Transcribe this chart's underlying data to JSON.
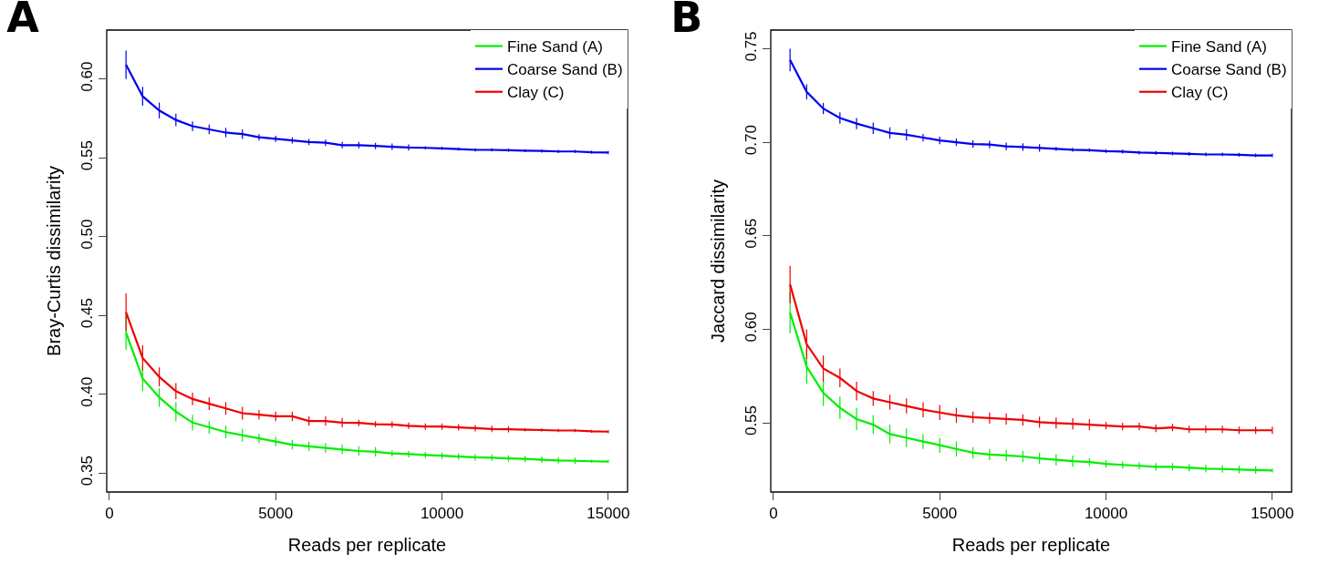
{
  "chart_data": [
    {
      "type": "line",
      "title": "A",
      "xlabel": "Reads per replicate",
      "ylabel": "Bray-Curtis dissimilarity",
      "x": [
        500,
        1000,
        1500,
        2000,
        2500,
        3000,
        3500,
        4000,
        4500,
        5000,
        5500,
        6000,
        6500,
        7000,
        7500,
        8000,
        8500,
        9000,
        9500,
        10000,
        10500,
        11000,
        11500,
        12000,
        12500,
        13000,
        13500,
        14000,
        14500,
        15000
      ],
      "series": [
        {
          "name": "Fine Sand (A)",
          "color": "#00ee00",
          "values": [
            0.439,
            0.41,
            0.398,
            0.389,
            0.382,
            0.379,
            0.376,
            0.374,
            0.372,
            0.37,
            0.368,
            0.367,
            0.366,
            0.365,
            0.364,
            0.3635,
            0.3625,
            0.362,
            0.3615,
            0.361,
            0.3605,
            0.36,
            0.3598,
            0.3593,
            0.359,
            0.3585,
            0.358,
            0.3578,
            0.3575,
            0.3573
          ],
          "errors": [
            0.011,
            0.008,
            0.006,
            0.006,
            0.005,
            0.004,
            0.004,
            0.004,
            0.003,
            0.003,
            0.003,
            0.003,
            0.003,
            0.003,
            0.003,
            0.003,
            0.002,
            0.002,
            0.002,
            0.002,
            0.002,
            0.002,
            0.002,
            0.002,
            0.002,
            0.002,
            0.002,
            0.002,
            0.001,
            0.001
          ]
        },
        {
          "name": "Coarse Sand (B)",
          "color": "#0000ee",
          "values": [
            0.609,
            0.589,
            0.58,
            0.574,
            0.57,
            0.568,
            0.566,
            0.565,
            0.563,
            0.562,
            0.561,
            0.56,
            0.5595,
            0.558,
            0.558,
            0.5575,
            0.557,
            0.5565,
            0.5563,
            0.556,
            0.5555,
            0.555,
            0.555,
            0.5548,
            0.5545,
            0.5543,
            0.554,
            0.554,
            0.5535,
            0.5533
          ],
          "errors": [
            0.009,
            0.006,
            0.005,
            0.004,
            0.003,
            0.003,
            0.003,
            0.003,
            0.002,
            0.002,
            0.002,
            0.002,
            0.002,
            0.002,
            0.002,
            0.002,
            0.002,
            0.002,
            0.001,
            0.001,
            0.001,
            0.001,
            0.001,
            0.001,
            0.001,
            0.001,
            0.001,
            0.001,
            0.001,
            0.001
          ]
        },
        {
          "name": "Clay (C)",
          "color": "#ee0000",
          "values": [
            0.452,
            0.423,
            0.411,
            0.402,
            0.397,
            0.394,
            0.391,
            0.388,
            0.387,
            0.386,
            0.386,
            0.383,
            0.383,
            0.382,
            0.3818,
            0.381,
            0.3808,
            0.38,
            0.3795,
            0.3795,
            0.379,
            0.3785,
            0.378,
            0.3778,
            0.3775,
            0.3773,
            0.377,
            0.377,
            0.3765,
            0.3763
          ],
          "errors": [
            0.012,
            0.008,
            0.006,
            0.005,
            0.004,
            0.004,
            0.004,
            0.004,
            0.003,
            0.003,
            0.003,
            0.003,
            0.003,
            0.003,
            0.002,
            0.002,
            0.002,
            0.002,
            0.002,
            0.002,
            0.002,
            0.002,
            0.002,
            0.002,
            0.001,
            0.001,
            0.001,
            0.001,
            0.001,
            0.001
          ]
        }
      ],
      "xlim": [
        -80,
        15580
      ],
      "xticks": [
        0,
        5000,
        10000,
        15000
      ],
      "ylim": [
        0.338,
        0.631
      ],
      "yticks": [
        {
          "value": 0.35,
          "label": "0.35"
        },
        {
          "value": 0.4,
          "label": "0.40"
        },
        {
          "value": 0.45,
          "label": "0.45"
        },
        {
          "value": 0.5,
          "label": "0.50"
        },
        {
          "value": 0.55,
          "label": "0.55"
        },
        {
          "value": 0.6,
          "label": "0.60"
        }
      ],
      "grid": false,
      "legend": "top right",
      "marker": "none",
      "line_style": "solid"
    },
    {
      "type": "line",
      "title": "B",
      "xlabel": "Reads per replicate",
      "ylabel": "Jaccard dissimilarity",
      "x": [
        500,
        1000,
        1500,
        2000,
        2500,
        3000,
        3500,
        4000,
        4500,
        5000,
        5500,
        6000,
        6500,
        7000,
        7500,
        8000,
        8500,
        9000,
        9500,
        10000,
        10500,
        11000,
        11500,
        12000,
        12500,
        13000,
        13500,
        14000,
        14500,
        15000
      ],
      "series": [
        {
          "name": "Fine Sand (A)",
          "color": "#00ee00",
          "values": [
            0.609,
            0.58,
            0.566,
            0.558,
            0.552,
            0.549,
            0.544,
            0.542,
            0.54,
            0.538,
            0.536,
            0.534,
            0.533,
            0.5325,
            0.532,
            0.531,
            0.5302,
            0.5295,
            0.529,
            0.528,
            0.5275,
            0.527,
            0.5265,
            0.5265,
            0.526,
            0.5255,
            0.5253,
            0.525,
            0.5248,
            0.5245
          ],
          "errors": [
            0.011,
            0.009,
            0.007,
            0.006,
            0.006,
            0.005,
            0.005,
            0.005,
            0.004,
            0.004,
            0.004,
            0.003,
            0.003,
            0.003,
            0.003,
            0.003,
            0.003,
            0.003,
            0.002,
            0.002,
            0.002,
            0.002,
            0.002,
            0.002,
            0.002,
            0.002,
            0.002,
            0.002,
            0.002,
            0.001
          ]
        },
        {
          "name": "Coarse Sand (B)",
          "color": "#0000ee",
          "values": [
            0.744,
            0.727,
            0.718,
            0.713,
            0.71,
            0.7075,
            0.705,
            0.704,
            0.7025,
            0.701,
            0.7,
            0.699,
            0.6988,
            0.6978,
            0.6975,
            0.697,
            0.6965,
            0.696,
            0.6958,
            0.6953,
            0.695,
            0.6945,
            0.6943,
            0.694,
            0.6938,
            0.6935,
            0.6935,
            0.6933,
            0.693,
            0.693
          ],
          "errors": [
            0.006,
            0.004,
            0.003,
            0.003,
            0.003,
            0.003,
            0.003,
            0.003,
            0.002,
            0.002,
            0.002,
            0.002,
            0.002,
            0.002,
            0.002,
            0.002,
            0.001,
            0.001,
            0.001,
            0.001,
            0.001,
            0.001,
            0.001,
            0.001,
            0.001,
            0.001,
            0.001,
            0.001,
            0.001,
            0.001
          ]
        },
        {
          "name": "Clay (C)",
          "color": "#ee0000",
          "values": [
            0.624,
            0.592,
            0.579,
            0.574,
            0.567,
            0.563,
            0.561,
            0.559,
            0.557,
            0.5555,
            0.554,
            0.553,
            0.5525,
            0.552,
            0.5515,
            0.5503,
            0.5498,
            0.5495,
            0.549,
            0.5485,
            0.548,
            0.548,
            0.547,
            0.5475,
            0.5465,
            0.5465,
            0.5465,
            0.546,
            0.546,
            0.546
          ],
          "errors": [
            0.01,
            0.008,
            0.007,
            0.005,
            0.005,
            0.004,
            0.004,
            0.004,
            0.004,
            0.004,
            0.004,
            0.003,
            0.003,
            0.003,
            0.003,
            0.003,
            0.003,
            0.003,
            0.003,
            0.002,
            0.002,
            0.002,
            0.002,
            0.002,
            0.002,
            0.002,
            0.002,
            0.002,
            0.002,
            0.002
          ]
        }
      ],
      "xlim": [
        -80,
        15580
      ],
      "xticks": [
        0,
        5000,
        10000,
        15000
      ],
      "ylim": [
        0.513,
        0.76
      ],
      "yticks": [
        {
          "value": 0.55,
          "label": "0.55"
        },
        {
          "value": 0.6,
          "label": "0.60"
        },
        {
          "value": 0.65,
          "label": "0.65"
        },
        {
          "value": 0.7,
          "label": "0.70"
        },
        {
          "value": 0.75,
          "label": "0.75"
        }
      ],
      "grid": false,
      "legend": "top right",
      "marker": "none",
      "line_style": "solid"
    }
  ]
}
